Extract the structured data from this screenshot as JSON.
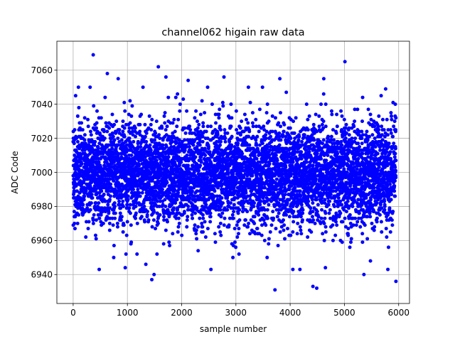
{
  "chart_data": {
    "type": "scatter",
    "title": "channel062 higain raw data",
    "xlabel": "sample number",
    "ylabel": "ADC Code",
    "xlim": [
      -300,
      6200
    ],
    "ylim": [
      6923,
      7077
    ],
    "xticks": [
      0,
      1000,
      2000,
      3000,
      4000,
      5000,
      6000
    ],
    "yticks": [
      6940,
      6960,
      6980,
      7000,
      7020,
      7040,
      7060
    ],
    "grid": true,
    "color": "#0000ff",
    "series": [
      {
        "n_points": 6000,
        "x_range": [
          0,
          5950
        ],
        "y_center": 6999,
        "y_spread_sd": 15,
        "highlight_points": [
          {
            "x": 370,
            "y": 7069
          },
          {
            "x": 5010,
            "y": 7065
          },
          {
            "x": 1570,
            "y": 7062
          },
          {
            "x": 630,
            "y": 7058
          },
          {
            "x": 830,
            "y": 7055
          },
          {
            "x": 2780,
            "y": 7056
          },
          {
            "x": 3810,
            "y": 7055
          },
          {
            "x": 4620,
            "y": 7055
          },
          {
            "x": 1710,
            "y": 7056
          },
          {
            "x": 2120,
            "y": 7054
          },
          {
            "x": 5760,
            "y": 7049
          },
          {
            "x": 3720,
            "y": 6931
          },
          {
            "x": 5950,
            "y": 6936
          },
          {
            "x": 4420,
            "y": 6933
          },
          {
            "x": 4490,
            "y": 6932
          },
          {
            "x": 1450,
            "y": 6937
          },
          {
            "x": 480,
            "y": 6943
          },
          {
            "x": 960,
            "y": 6944
          },
          {
            "x": 2540,
            "y": 6943
          },
          {
            "x": 4050,
            "y": 6943
          },
          {
            "x": 4180,
            "y": 6943
          },
          {
            "x": 4650,
            "y": 6944
          },
          {
            "x": 1340,
            "y": 6946
          },
          {
            "x": 5480,
            "y": 6948
          }
        ]
      }
    ]
  }
}
